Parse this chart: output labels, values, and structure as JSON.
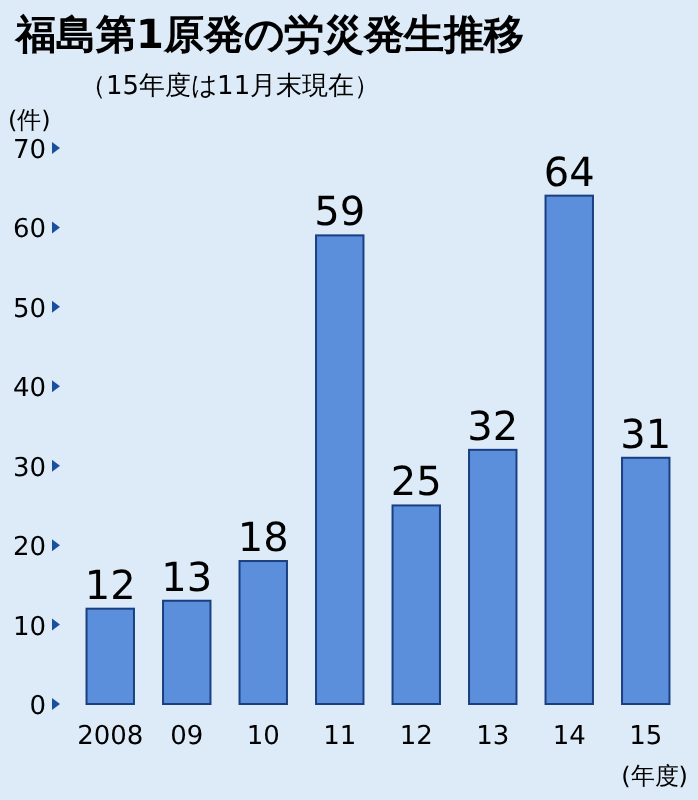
{
  "chart_data": {
    "type": "bar",
    "title": "福島第1原発の労災発生推移",
    "subtitle": "（15年度は11月末現在）",
    "ylabel": "(件)",
    "xlabel": "(年度)",
    "categories": [
      "2008",
      "09",
      "10",
      "11",
      "12",
      "13",
      "14",
      "15"
    ],
    "values": [
      12,
      13,
      18,
      59,
      25,
      32,
      64,
      31
    ],
    "color": "#5b8fdc",
    "ylim": [
      0,
      70
    ],
    "yticks": [
      0,
      10,
      20,
      30,
      40,
      50,
      60,
      70
    ],
    "data_labels": true
  }
}
